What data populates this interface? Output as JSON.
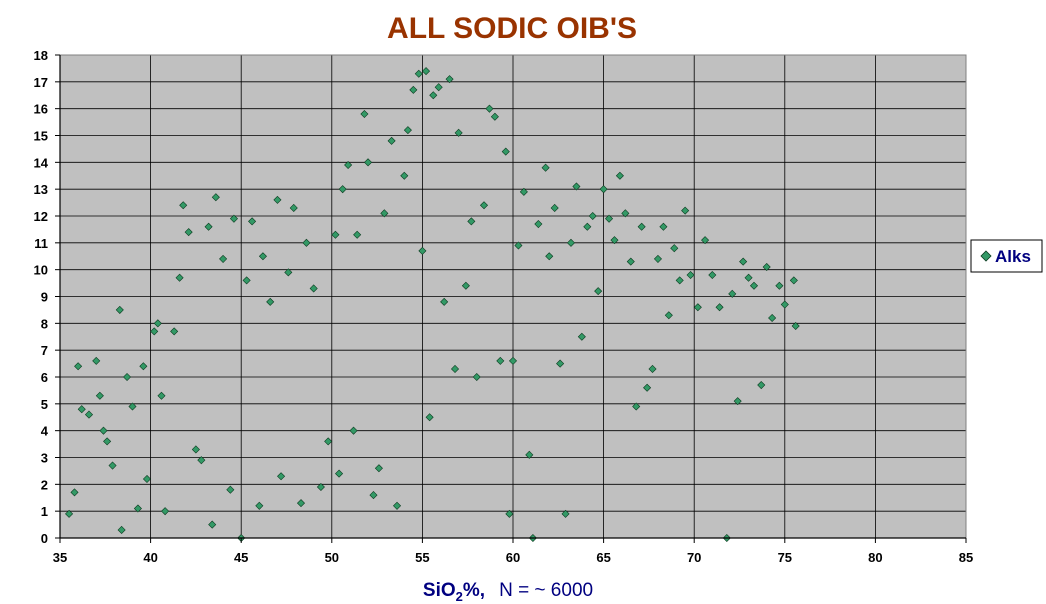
{
  "chart_data": {
    "type": "scatter",
    "title": "ALL SODIC OIB'S",
    "xlabel_main": "SiO",
    "xlabel_sub": "2",
    "xlabel_pct": "%,",
    "xlabel_note": "N = ~ 6000",
    "ylabel": "",
    "xlim": [
      35,
      85
    ],
    "ylim": [
      0,
      18
    ],
    "x_ticks": [
      "35",
      "40",
      "45",
      "50",
      "55",
      "60",
      "65",
      "70",
      "75",
      "80",
      "85"
    ],
    "y_ticks": [
      "0",
      "1",
      "2",
      "3",
      "4",
      "5",
      "6",
      "7",
      "8",
      "9",
      "10",
      "11",
      "12",
      "13",
      "14",
      "15",
      "16",
      "17",
      "18"
    ],
    "grid": true,
    "legend_position": "right",
    "colors": {
      "title": "#993300",
      "axis_label": "#000080",
      "plot_background": "#c0c0c0",
      "marker_fill": "#339966",
      "marker_edge": "#0b3b1f"
    },
    "series": [
      {
        "name": "Alks",
        "marker": "diamond",
        "clusters_note": "approximate reading of ~6000 plotted points",
        "points": [
          [
            35.5,
            0.9
          ],
          [
            35.8,
            1.7
          ],
          [
            36.0,
            6.4
          ],
          [
            36.2,
            4.8
          ],
          [
            36.6,
            4.6
          ],
          [
            37.0,
            6.6
          ],
          [
            37.2,
            5.3
          ],
          [
            37.4,
            4.0
          ],
          [
            37.6,
            3.6
          ],
          [
            37.9,
            2.7
          ],
          [
            38.3,
            8.5
          ],
          [
            38.4,
            0.3
          ],
          [
            38.7,
            6.0
          ],
          [
            39.0,
            4.9
          ],
          [
            39.3,
            1.1
          ],
          [
            39.6,
            6.4
          ],
          [
            39.8,
            2.2
          ],
          [
            40.2,
            7.7
          ],
          [
            40.4,
            8.0
          ],
          [
            40.6,
            5.3
          ],
          [
            40.8,
            1.0
          ],
          [
            41.3,
            7.7
          ],
          [
            41.6,
            9.7
          ],
          [
            41.8,
            12.4
          ],
          [
            42.1,
            11.4
          ],
          [
            42.5,
            3.3
          ],
          [
            42.8,
            2.9
          ],
          [
            43.2,
            11.6
          ],
          [
            43.4,
            0.5
          ],
          [
            43.6,
            12.7
          ],
          [
            44.0,
            10.4
          ],
          [
            44.4,
            1.8
          ],
          [
            44.6,
            11.9
          ],
          [
            45.0,
            0.0
          ],
          [
            45.3,
            9.6
          ],
          [
            45.6,
            11.8
          ],
          [
            46.0,
            1.2
          ],
          [
            46.2,
            10.5
          ],
          [
            46.6,
            8.8
          ],
          [
            47.0,
            12.6
          ],
          [
            47.2,
            2.3
          ],
          [
            47.6,
            9.9
          ],
          [
            47.9,
            12.3
          ],
          [
            48.3,
            1.3
          ],
          [
            48.6,
            11.0
          ],
          [
            49.0,
            9.3
          ],
          [
            49.4,
            1.9
          ],
          [
            49.8,
            3.6
          ],
          [
            50.2,
            11.3
          ],
          [
            50.4,
            2.4
          ],
          [
            50.6,
            13.0
          ],
          [
            50.9,
            13.9
          ],
          [
            51.2,
            4.0
          ],
          [
            51.4,
            11.3
          ],
          [
            51.8,
            15.8
          ],
          [
            52.0,
            14.0
          ],
          [
            52.3,
            1.6
          ],
          [
            52.6,
            2.6
          ],
          [
            52.9,
            12.1
          ],
          [
            53.3,
            14.8
          ],
          [
            53.6,
            1.2
          ],
          [
            54.0,
            13.5
          ],
          [
            54.2,
            15.2
          ],
          [
            54.5,
            16.7
          ],
          [
            54.8,
            17.3
          ],
          [
            55.0,
            10.7
          ],
          [
            55.2,
            17.4
          ],
          [
            55.4,
            4.5
          ],
          [
            55.6,
            16.5
          ],
          [
            55.9,
            16.8
          ],
          [
            56.2,
            8.8
          ],
          [
            56.5,
            17.1
          ],
          [
            56.8,
            6.3
          ],
          [
            57.0,
            15.1
          ],
          [
            57.4,
            9.4
          ],
          [
            57.7,
            11.8
          ],
          [
            58.0,
            6.0
          ],
          [
            58.4,
            12.4
          ],
          [
            58.7,
            16.0
          ],
          [
            59.0,
            15.7
          ],
          [
            59.3,
            6.6
          ],
          [
            59.6,
            14.4
          ],
          [
            59.8,
            0.9
          ],
          [
            60.0,
            6.6
          ],
          [
            60.3,
            10.9
          ],
          [
            60.6,
            12.9
          ],
          [
            60.9,
            3.1
          ],
          [
            61.1,
            0.0
          ],
          [
            61.4,
            11.7
          ],
          [
            61.8,
            13.8
          ],
          [
            62.0,
            10.5
          ],
          [
            62.3,
            12.3
          ],
          [
            62.6,
            6.5
          ],
          [
            62.9,
            0.9
          ],
          [
            63.2,
            11.0
          ],
          [
            63.5,
            13.1
          ],
          [
            63.8,
            7.5
          ],
          [
            64.1,
            11.6
          ],
          [
            64.4,
            12.0
          ],
          [
            64.7,
            9.2
          ],
          [
            65.0,
            13.0
          ],
          [
            65.3,
            11.9
          ],
          [
            65.6,
            11.1
          ],
          [
            65.9,
            13.5
          ],
          [
            66.2,
            12.1
          ],
          [
            66.5,
            10.3
          ],
          [
            66.8,
            4.9
          ],
          [
            67.1,
            11.6
          ],
          [
            67.4,
            5.6
          ],
          [
            67.7,
            6.3
          ],
          [
            68.0,
            10.4
          ],
          [
            68.3,
            11.6
          ],
          [
            68.6,
            8.3
          ],
          [
            68.9,
            10.8
          ],
          [
            69.2,
            9.6
          ],
          [
            69.5,
            12.2
          ],
          [
            69.8,
            9.8
          ],
          [
            70.2,
            8.6
          ],
          [
            70.6,
            11.1
          ],
          [
            71.0,
            9.8
          ],
          [
            71.4,
            8.6
          ],
          [
            71.8,
            0.0
          ],
          [
            72.1,
            9.1
          ],
          [
            72.4,
            5.1
          ],
          [
            72.7,
            10.3
          ],
          [
            73.0,
            9.7
          ],
          [
            73.3,
            9.4
          ],
          [
            73.7,
            5.7
          ],
          [
            74.0,
            10.1
          ],
          [
            74.3,
            8.2
          ],
          [
            74.7,
            9.4
          ],
          [
            75.0,
            8.7
          ],
          [
            75.5,
            9.6
          ],
          [
            75.6,
            7.9
          ]
        ]
      }
    ]
  }
}
